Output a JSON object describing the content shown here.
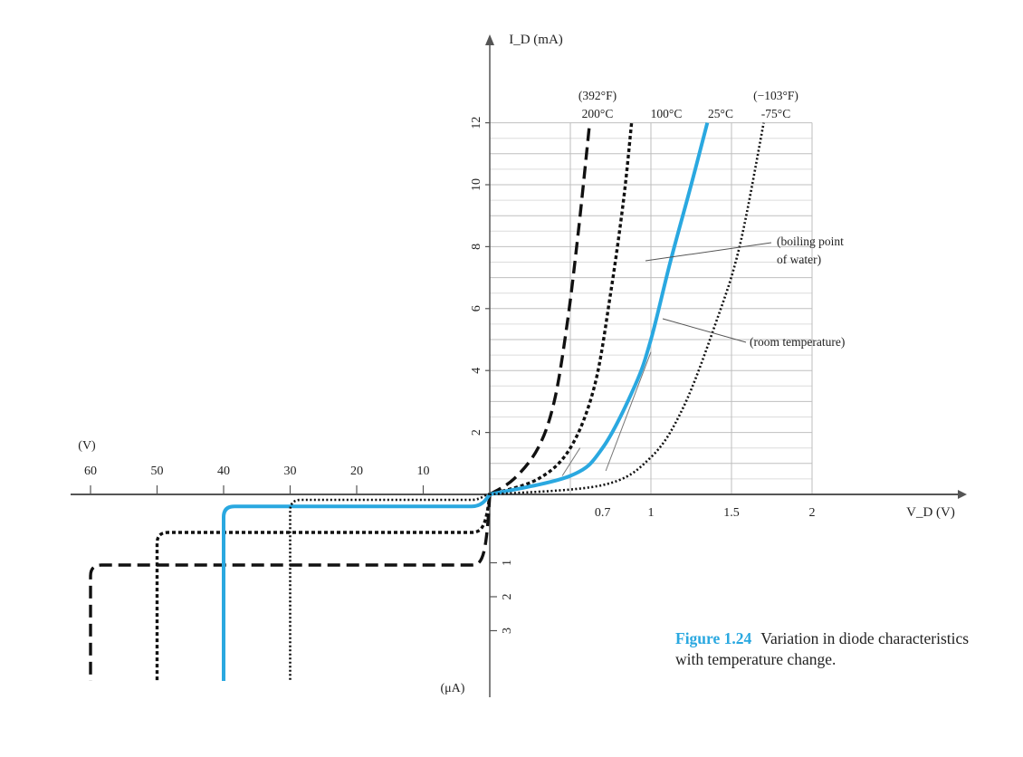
{
  "chart_data": {
    "type": "line",
    "y_axis_label": "I_D (mA)",
    "x_axis_label": "V_D (V)",
    "reverse_voltage_unit": "(V)",
    "reverse_current_unit": "(μA)",
    "forward_x_ticks": [
      "0.7",
      "1",
      "1.5",
      "2"
    ],
    "forward_y_ticks": [
      "2",
      "4",
      "6",
      "8",
      "10",
      "12"
    ],
    "reverse_x_ticks": [
      "10",
      "20",
      "30",
      "40",
      "50",
      "60"
    ],
    "reverse_y_ticks": [
      "1",
      "2",
      "3"
    ],
    "series": [
      {
        "temp_c": "200°C",
        "temp_f": "(392°F)",
        "color": "#111111",
        "style": "dashed",
        "forward": [
          [
            0.0,
            0.0
          ],
          [
            0.15,
            0.5
          ],
          [
            0.3,
            1.5
          ],
          [
            0.4,
            3.0
          ],
          [
            0.48,
            5.5
          ],
          [
            0.55,
            8.5
          ],
          [
            0.62,
            12
          ]
        ],
        "reverse_breakdown_v": 60,
        "reverse_saturation_ua": 2.0
      },
      {
        "temp_c": "100°C",
        "temp_f": "",
        "color": "#111111",
        "style": "dotted-heavy",
        "forward": [
          [
            0.0,
            0.0
          ],
          [
            0.3,
            0.5
          ],
          [
            0.5,
            1.5
          ],
          [
            0.65,
            3.5
          ],
          [
            0.75,
            6.5
          ],
          [
            0.83,
            9.5
          ],
          [
            0.88,
            12
          ]
        ],
        "reverse_breakdown_v": 50,
        "reverse_saturation_ua": 1.0
      },
      {
        "temp_c": "25°C",
        "temp_f": "",
        "color": "#2aa8e0",
        "style": "solid",
        "forward": [
          [
            0.0,
            0.0
          ],
          [
            0.5,
            0.6
          ],
          [
            0.7,
            1.5
          ],
          [
            0.9,
            3.5
          ],
          [
            1.0,
            5.0
          ],
          [
            1.12,
            7.5
          ],
          [
            1.25,
            10.0
          ],
          [
            1.35,
            12
          ]
        ],
        "reverse_breakdown_v": 40,
        "reverse_saturation_ua": 0.2
      },
      {
        "temp_c": "-75°C",
        "temp_f": "(−103°F)",
        "color": "#111111",
        "style": "dotted-fine",
        "forward": [
          [
            0.0,
            0.0
          ],
          [
            0.7,
            0.3
          ],
          [
            1.0,
            1.2
          ],
          [
            1.2,
            2.8
          ],
          [
            1.4,
            5.5
          ],
          [
            1.55,
            8.0
          ],
          [
            1.7,
            12
          ]
        ],
        "reverse_breakdown_v": 30,
        "reverse_saturation_ua": 0.0
      }
    ],
    "annotations": [
      {
        "text_lines": [
          "(boiling point",
          "of water)"
        ]
      },
      {
        "text_lines": [
          "(room temperature)"
        ]
      }
    ],
    "grid": true
  },
  "caption": {
    "label": "Figure 1.24",
    "text": "Variation in diode characteristics with temperature change."
  }
}
